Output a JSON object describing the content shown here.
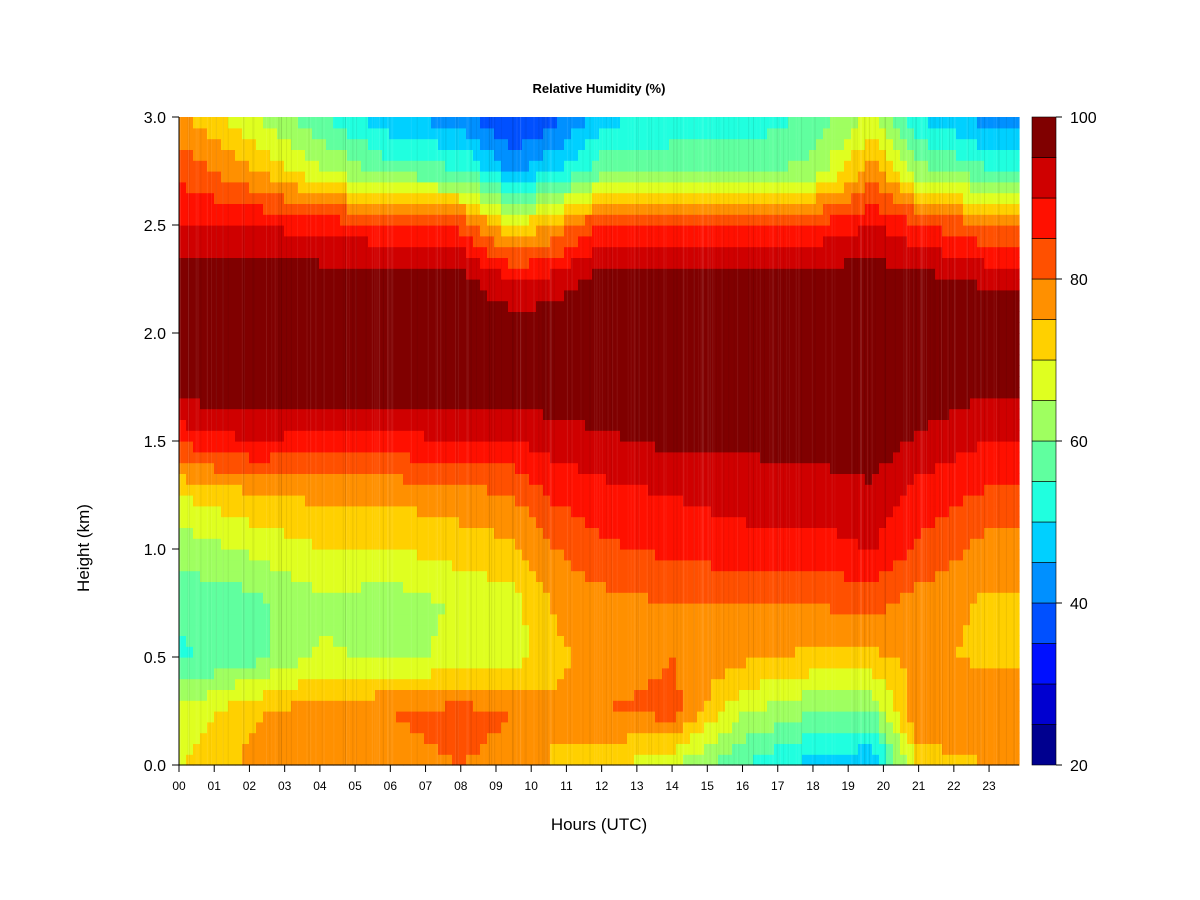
{
  "chart_data": {
    "type": "heatmap",
    "title": "Relative Humidity (%)",
    "xlabel": "Hours (UTC)",
    "ylabel": "Height (km)",
    "x": [
      "00",
      "01",
      "02",
      "03",
      "04",
      "05",
      "06",
      "07",
      "08",
      "09",
      "10",
      "11",
      "12",
      "13",
      "14",
      "15",
      "16",
      "17",
      "18",
      "19",
      "20",
      "21",
      "22",
      "23"
    ],
    "xlim": [
      0,
      23.85
    ],
    "ylim": [
      0,
      3.0
    ],
    "yticks": [
      "0.0",
      "0.5",
      "1.0",
      "1.5",
      "2.0",
      "2.5",
      "3.0"
    ],
    "ytick_values": [
      0,
      0.5,
      1.0,
      1.5,
      2.0,
      2.5,
      3.0
    ],
    "colorbar": {
      "range": [
        20,
        100
      ],
      "levels": [
        20,
        25,
        30,
        35,
        40,
        45,
        50,
        55,
        60,
        65,
        70,
        75,
        80,
        85,
        90,
        95,
        100
      ],
      "ticks": [
        "20",
        "40",
        "60",
        "80",
        "100"
      ],
      "tick_values": [
        20,
        40,
        60,
        80,
        100
      ],
      "colors": [
        "#00008F",
        "#0000D0",
        "#0010FF",
        "#0050FF",
        "#0090FF",
        "#00D0FF",
        "#20FFDF",
        "#60FF9F",
        "#9FFF60",
        "#DFFF20",
        "#FFD000",
        "#FF9000",
        "#FF5000",
        "#FF1000",
        "#CF0000",
        "#800000"
      ]
    },
    "heights": [
      0.0,
      0.25,
      0.5,
      0.75,
      1.0,
      1.25,
      1.5,
      1.75,
      2.0,
      2.25,
      2.5,
      2.75,
      3.0
    ],
    "hours": [
      0,
      2,
      4,
      6,
      8,
      9.5,
      10.7,
      12,
      14,
      16,
      18,
      19.7,
      21,
      23
    ],
    "values": [
      [
        70,
        76,
        78,
        78,
        80,
        78,
        74,
        72,
        65,
        55,
        48,
        45,
        72,
        75
      ],
      [
        66,
        74,
        78,
        80,
        82,
        80,
        76,
        80,
        82,
        66,
        60,
        60,
        80,
        80
      ],
      [
        54,
        58,
        66,
        64,
        66,
        68,
        74,
        76,
        80,
        76,
        74,
        74,
        76,
        74
      ],
      [
        56,
        58,
        64,
        62,
        66,
        68,
        76,
        78,
        80,
        80,
        80,
        82,
        78,
        74
      ],
      [
        62,
        66,
        70,
        70,
        72,
        74,
        80,
        84,
        86,
        88,
        88,
        90,
        84,
        78
      ],
      [
        70,
        74,
        76,
        76,
        78,
        80,
        86,
        88,
        90,
        92,
        92,
        94,
        88,
        84
      ],
      [
        86,
        90,
        88,
        88,
        90,
        90,
        92,
        94,
        96,
        96,
        97,
        98,
        94,
        90
      ],
      [
        98,
        99,
        99,
        99,
        99,
        98,
        99,
        99,
        100,
        100,
        100,
        100,
        99,
        96
      ],
      [
        100,
        100,
        100,
        100,
        100,
        99,
        99,
        100,
        100,
        100,
        100,
        100,
        100,
        98
      ],
      [
        98,
        98,
        98,
        98,
        97,
        90,
        92,
        98,
        98,
        98,
        98,
        98,
        97,
        94
      ],
      [
        90,
        90,
        88,
        86,
        84,
        70,
        76,
        86,
        86,
        86,
        86,
        90,
        86,
        80
      ],
      [
        84,
        76,
        66,
        58,
        56,
        44,
        50,
        58,
        58,
        58,
        62,
        78,
        62,
        56
      ],
      [
        76,
        66,
        56,
        46,
        42,
        34,
        38,
        48,
        52,
        52,
        56,
        66,
        50,
        42
      ]
    ]
  }
}
